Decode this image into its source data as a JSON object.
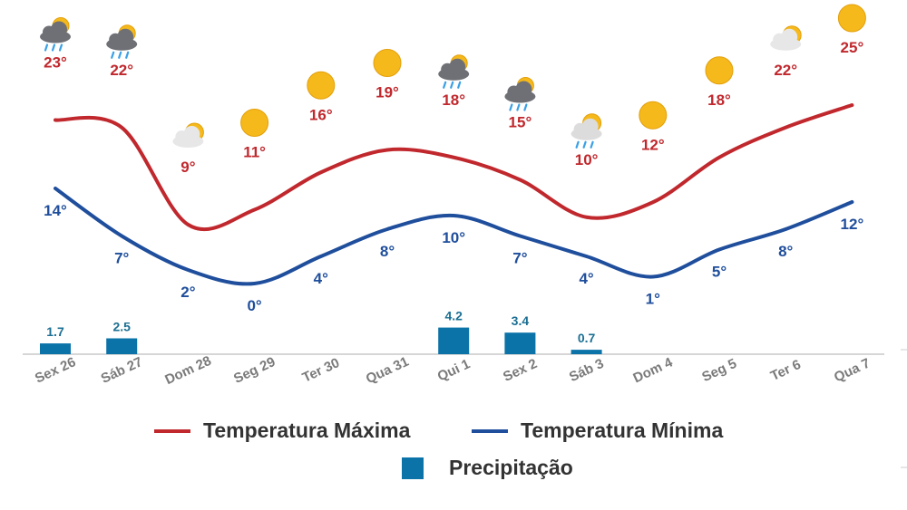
{
  "chart_data": {
    "type": "line",
    "categories": [
      "Sex 26",
      "Sáb 27",
      "Dom 28",
      "Seg 29",
      "Ter 30",
      "Qua 31",
      "Qui 1",
      "Sex 2",
      "Sáb 3",
      "Dom 4",
      "Seg 5",
      "Ter 6",
      "Qua 7"
    ],
    "series": [
      {
        "name": "Temperatura Máxima",
        "type": "line",
        "color": "#c0282d",
        "values": [
          23,
          22,
          9,
          11,
          16,
          19,
          18,
          15,
          10,
          12,
          18,
          22,
          25
        ],
        "labels": [
          "23°",
          "22°",
          "9°",
          "11°",
          "16°",
          "19°",
          "18°",
          "15°",
          "10°",
          "12°",
          "18°",
          "22°",
          "25°"
        ]
      },
      {
        "name": "Temperatura Mínima",
        "type": "line",
        "color": "#1f4e9c",
        "values": [
          14,
          7,
          2,
          0,
          4,
          8,
          10,
          7,
          4,
          1,
          5,
          8,
          12
        ],
        "labels": [
          "14°",
          "7°",
          "2°",
          "0°",
          "4°",
          "8°",
          "10°",
          "7°",
          "4°",
          "1°",
          "5°",
          "8°",
          "12°"
        ]
      },
      {
        "name": "Precipitação",
        "type": "bar",
        "color": "#0b73a8",
        "values": [
          1.7,
          2.5,
          0,
          0,
          0,
          0,
          4.2,
          3.4,
          0.7,
          0,
          0,
          0,
          0
        ],
        "labels": [
          "1.7",
          "2.5",
          "",
          "",
          "",
          "",
          "4.2",
          "3.4",
          "0.7",
          "",
          "",
          "",
          ""
        ]
      }
    ],
    "icons": [
      "rain-cloud-icon",
      "rain-cloud-icon",
      "partly-cloudy-icon",
      "sun-icon",
      "sun-icon",
      "sun-icon",
      "rain-cloud-icon",
      "rain-cloud-icon",
      "sun-rain-icon",
      "sun-icon",
      "sun-icon",
      "partly-cloudy-icon",
      "sun-icon"
    ],
    "legend_position": "bottom",
    "grid": false,
    "title": "",
    "xlabel": "",
    "ylabel": ""
  },
  "legend": {
    "max_label": "Temperatura Máxima",
    "min_label": "Temperatura Mínima",
    "precip_label": "Precipitação"
  }
}
